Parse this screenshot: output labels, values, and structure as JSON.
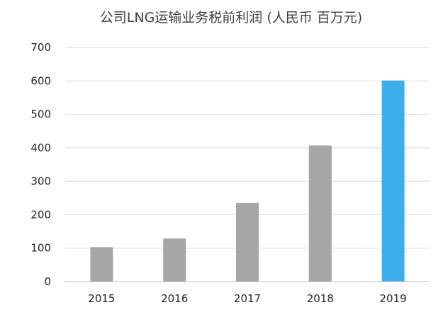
{
  "chart_data": {
    "type": "bar",
    "title": "公司LNG运输业务税前利润 (人民币 百万元)",
    "xlabel": "",
    "ylabel": "",
    "categories": [
      "2015",
      "2016",
      "2017",
      "2018",
      "2019"
    ],
    "values": [
      103,
      129,
      235,
      407,
      601
    ],
    "ylim": [
      0,
      700
    ],
    "yticks": [
      0,
      100,
      200,
      300,
      400,
      500,
      600,
      700
    ],
    "grid": true,
    "legend": "none",
    "colors": {
      "default_bar": "#a6a6a6",
      "highlight_bar": "#3daee9",
      "highlight_category": "2019"
    }
  }
}
